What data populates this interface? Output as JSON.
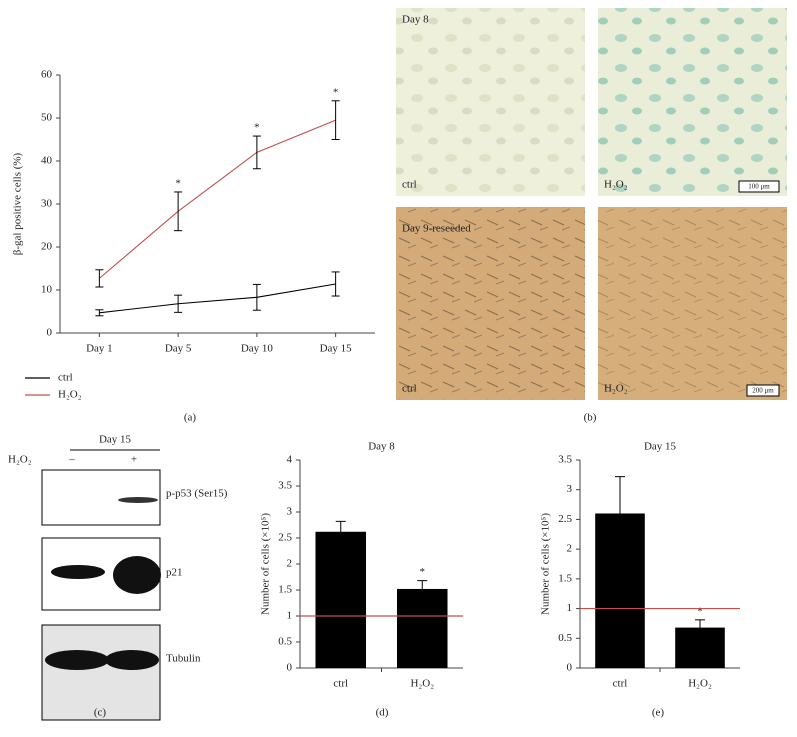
{
  "chart_data": [
    {
      "type": "line",
      "panel": "(a)",
      "ylabel": "β-gal positive cells (%)",
      "categories": [
        "Day 1",
        "Day 5",
        "Day 10",
        "Day 15"
      ],
      "series": [
        {
          "name": "ctrl",
          "color": "#000000",
          "values": [
            4.7,
            6.8,
            8.3,
            11.4
          ],
          "errors": [
            0.7,
            2.0,
            3.0,
            2.8
          ],
          "significance": [
            null,
            null,
            null,
            null
          ]
        },
        {
          "name": "H₂O₂",
          "color": "#c0504d",
          "values": [
            12.7,
            28.3,
            42.0,
            49.5
          ],
          "errors": [
            2.0,
            4.5,
            3.8,
            4.5
          ],
          "significance": [
            null,
            "*",
            "*",
            "*"
          ]
        }
      ],
      "ylim": [
        0,
        60
      ],
      "yticks": [
        0,
        10,
        20,
        30,
        40,
        50,
        60
      ],
      "grid": false
    },
    {
      "type": "bar",
      "panel": "(d)",
      "title": "Day 8",
      "ylabel": "Number of cells (×10⁵)",
      "categories": [
        "ctrl",
        "H₂O₂"
      ],
      "series": [
        {
          "color": "#000000",
          "values": [
            2.62,
            1.52
          ],
          "errors": [
            0.2,
            0.16
          ],
          "significance": [
            null,
            "*"
          ]
        }
      ],
      "reference_line": {
        "value": 1,
        "color": "#c0504d"
      },
      "ylim": [
        0,
        4
      ],
      "yticks": [
        0,
        0.5,
        1,
        1.5,
        2,
        2.5,
        3,
        3.5,
        4
      ],
      "grid": false
    },
    {
      "type": "bar",
      "panel": "(e)",
      "title": "Day 15",
      "ylabel": "Number of cells (×10⁵)",
      "categories": [
        "ctrl",
        "H₂O₂"
      ],
      "series": [
        {
          "color": "#000000",
          "values": [
            2.6,
            0.68
          ],
          "errors": [
            0.62,
            0.13
          ],
          "significance": [
            null,
            "*"
          ]
        }
      ],
      "reference_line": {
        "value": 1,
        "color": "#c0504d"
      },
      "ylim": [
        0,
        3.5
      ],
      "yticks": [
        0,
        0.5,
        1,
        1.5,
        2,
        2.5,
        3,
        3.5
      ],
      "grid": false
    }
  ],
  "micrographs": {
    "panel": "(b)",
    "rows": [
      {
        "label": "Day 8",
        "left": "ctrl",
        "right": "H₂O₂",
        "scale": "100 μm"
      },
      {
        "label": "Day 9-reseeded",
        "left": "ctrl",
        "right": "H₂O₂",
        "scale": "200 μm"
      }
    ]
  },
  "blot": {
    "panel": "(c)",
    "day": "Day 15",
    "treatment": "H₂O₂",
    "lanes": [
      "–",
      "+"
    ],
    "bands": [
      "p-p53 (Ser15)",
      "p21",
      "Tubulin"
    ]
  }
}
